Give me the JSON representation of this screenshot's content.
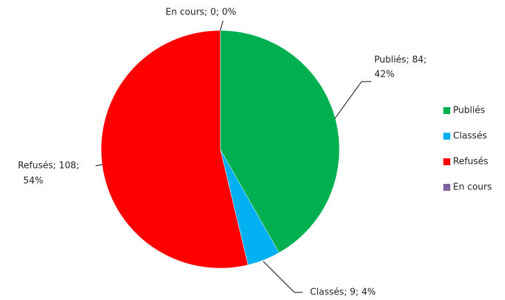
{
  "chart_data": {
    "type": "pie",
    "categories": [
      "Publiés",
      "Classés",
      "Refusés",
      "En cours"
    ],
    "values": [
      84,
      9,
      108,
      0
    ],
    "value_labels": [
      [
        "Publiés; 84;",
        "42%"
      ],
      [
        "Classés; 9; 4%"
      ],
      [
        "Refusés; 108;",
        "54%"
      ],
      [
        "En cours; 0; 0%"
      ]
    ],
    "colors": [
      "#00b050",
      "#00b0f0",
      "#ff0000",
      "#8064a2"
    ],
    "legend": "right"
  }
}
